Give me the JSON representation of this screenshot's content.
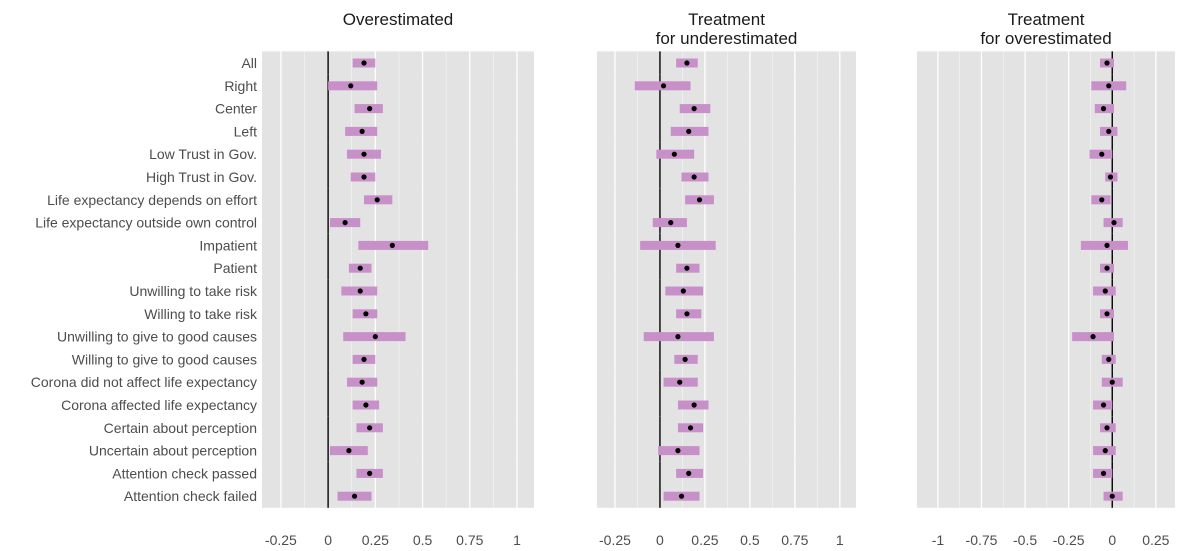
{
  "chart_data": {
    "type": "forest",
    "row_labels": [
      "All",
      "Right",
      "Center",
      "Left",
      "Low Trust in Gov.",
      "High Trust in Gov.",
      "Life expectancy depends on effort",
      "Life expectancy outside own control",
      "Impatient",
      "Patient",
      "Unwilling to take risk",
      "Willing to take risk",
      "Unwilling to give to good causes",
      "Willing to give to good causes",
      "Corona did not affect life expectancy",
      "Corona affected life expectancy",
      "Certain about perception",
      "Uncertain about perception",
      "Attention check passed",
      "Attention check failed"
    ],
    "row_groups": [
      [
        0
      ],
      [
        1,
        2,
        3
      ],
      [
        4,
        5
      ],
      [
        6,
        7
      ],
      [
        8,
        9
      ],
      [
        10,
        11
      ],
      [
        12,
        13
      ],
      [
        14,
        15
      ],
      [
        16,
        17
      ],
      [
        18,
        19
      ]
    ],
    "panels": [
      {
        "title": [
          "Overestimated"
        ],
        "xlim": [
          -0.35,
          1.09
        ],
        "ticks": [
          -0.25,
          0,
          0.25,
          0.5,
          0.75,
          1
        ],
        "tick_labels": [
          "-0.25",
          "0",
          "0.25",
          "0.5",
          "0.75",
          "1"
        ],
        "estimates": [
          0.19,
          0.12,
          0.22,
          0.18,
          0.19,
          0.19,
          0.26,
          0.09,
          0.34,
          0.17,
          0.17,
          0.2,
          0.25,
          0.19,
          0.18,
          0.2,
          0.22,
          0.11,
          0.22,
          0.14
        ],
        "ci_low": [
          0.13,
          0.0,
          0.14,
          0.09,
          0.1,
          0.12,
          0.19,
          0.01,
          0.16,
          0.11,
          0.07,
          0.13,
          0.08,
          0.13,
          0.1,
          0.13,
          0.15,
          0.01,
          0.15,
          0.05
        ],
        "ci_high": [
          0.25,
          0.26,
          0.29,
          0.26,
          0.28,
          0.25,
          0.34,
          0.17,
          0.53,
          0.23,
          0.26,
          0.26,
          0.41,
          0.25,
          0.26,
          0.27,
          0.29,
          0.21,
          0.29,
          0.23
        ]
      },
      {
        "title": [
          "Treatment",
          "for underestimated"
        ],
        "xlim": [
          -0.35,
          1.09
        ],
        "ticks": [
          -0.25,
          0,
          0.25,
          0.5,
          0.75,
          1
        ],
        "tick_labels": [
          "-0.25",
          "0",
          "0.25",
          "0.5",
          "0.75",
          "1"
        ],
        "estimates": [
          0.15,
          0.02,
          0.19,
          0.16,
          0.08,
          0.19,
          0.22,
          0.06,
          0.1,
          0.15,
          0.13,
          0.15,
          0.1,
          0.14,
          0.11,
          0.19,
          0.17,
          0.1,
          0.16,
          0.12
        ],
        "ci_low": [
          0.09,
          -0.14,
          0.11,
          0.06,
          -0.02,
          0.12,
          0.14,
          -0.04,
          -0.11,
          0.09,
          0.03,
          0.09,
          -0.09,
          0.08,
          0.02,
          0.1,
          0.1,
          -0.01,
          0.09,
          0.02
        ],
        "ci_high": [
          0.21,
          0.17,
          0.28,
          0.27,
          0.19,
          0.27,
          0.3,
          0.15,
          0.31,
          0.22,
          0.24,
          0.23,
          0.3,
          0.21,
          0.21,
          0.27,
          0.24,
          0.22,
          0.24,
          0.22
        ]
      },
      {
        "title": [
          "Treatment",
          "for overestimated"
        ],
        "xlim": [
          -1.12,
          0.36
        ],
        "ticks": [
          -1,
          -0.75,
          -0.5,
          -0.25,
          0,
          0.25
        ],
        "tick_labels": [
          "-1",
          "-0.75",
          "-0.5",
          "-0.25",
          "0",
          "0.25"
        ],
        "estimates": [
          -0.03,
          -0.02,
          -0.05,
          -0.02,
          -0.06,
          -0.01,
          -0.06,
          0.01,
          -0.03,
          -0.03,
          -0.04,
          -0.03,
          -0.11,
          -0.02,
          0.0,
          -0.05,
          -0.03,
          -0.04,
          -0.05,
          0.0
        ],
        "ci_low": [
          -0.07,
          -0.12,
          -0.1,
          -0.07,
          -0.13,
          -0.04,
          -0.12,
          -0.05,
          -0.18,
          -0.07,
          -0.11,
          -0.07,
          -0.23,
          -0.06,
          -0.06,
          -0.11,
          -0.07,
          -0.11,
          -0.11,
          -0.05
        ],
        "ci_high": [
          0.01,
          0.08,
          0.01,
          0.03,
          0.0,
          0.03,
          -0.01,
          0.06,
          0.09,
          0.01,
          0.02,
          0.01,
          0.01,
          0.02,
          0.06,
          0.0,
          0.02,
          0.02,
          0.0,
          0.06
        ]
      }
    ],
    "colors": {
      "panel_bg": "#e3e3e3",
      "grid": "#ffffff",
      "ci_bar": "#c890c8",
      "point": "#000000",
      "zero_line": "#000000"
    }
  }
}
